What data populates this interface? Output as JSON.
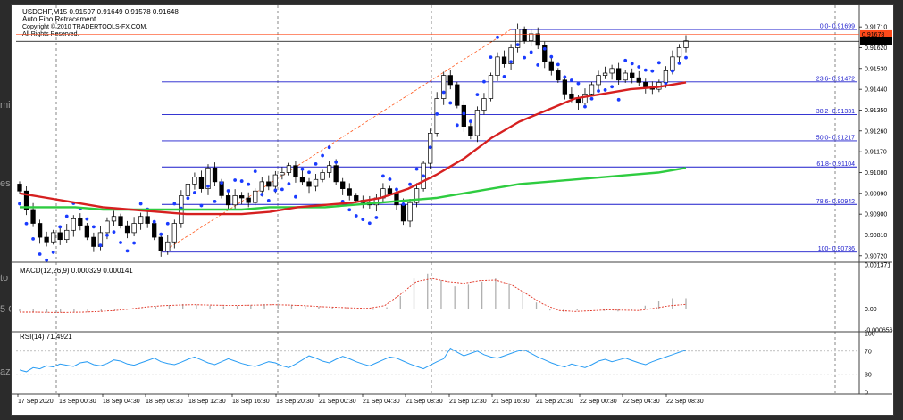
{
  "window": {
    "symbol_line": "USDCHF,M15  0.91597 0.91649 0.91578 0.91648",
    "indicator_name": "Auto Fibo Retracement",
    "copyright": "Copyright © 2010 TRADERTOOLS-FX.COM.",
    "rights": "All Rights Reserved."
  },
  "side_text": [
    "mi",
    "es",
    "to",
    "5 G",
    "aze"
  ],
  "colors": {
    "candle": "#000000",
    "sar": "#1a3bff",
    "ma_red": "#d62020",
    "ma_green": "#2ecc40",
    "fibo": "#1a1acc",
    "diagonal": "#ff5a1f",
    "macd_hist": "#b0b0b0",
    "macd_signal": "#e03020",
    "rsi": "#2a9df4",
    "price_marker": "#ff4a1a"
  },
  "chart_data": [
    {
      "type": "candlestick",
      "title": "USDCHF,M15",
      "ylim": [
        0.907,
        0.9178
      ],
      "y_ticks": [
        "0.91710",
        "0.91620",
        "0.91530",
        "0.91440",
        "0.91350",
        "0.91260",
        "0.91170",
        "0.91080",
        "0.90990",
        "0.90900",
        "0.90810",
        "0.90720"
      ],
      "x_ticks": [
        "17 Sep 2020",
        "18 Sep 00:30",
        "18 Sep 04:30",
        "18 Sep 08:30",
        "18 Sep 12:30",
        "18 Sep 16:30",
        "18 Sep 20:30",
        "21 Sep 00:30",
        "21 Sep 04:30",
        "21 Sep 08:30",
        "21 Sep 12:30",
        "21 Sep 16:30",
        "21 Sep 20:30",
        "22 Sep 00:30",
        "22 Sep 04:30",
        "22 Sep 08:30"
      ],
      "current_prices": [
        {
          "value": 0.91678,
          "label": "0.91678",
          "color": "#ff4a1a"
        },
        {
          "value": 0.91648,
          "label": "0.91648",
          "color": "#000000"
        }
      ],
      "fibo_levels": [
        {
          "label": "0.0- 0.91699",
          "price": 0.91699
        },
        {
          "label": "23.6- 0.91472",
          "price": 0.91472
        },
        {
          "label": "38.2- 0.91331",
          "price": 0.91331
        },
        {
          "label": "50.0- 0.91217",
          "price": 0.91217
        },
        {
          "label": "61.8- 0.91104",
          "price": 0.91104
        },
        {
          "label": "78.6- 0.90942",
          "price": 0.90942
        },
        {
          "label": "100- 0.90736",
          "price": 0.90736
        }
      ],
      "close_path": [
        0.91,
        0.9092,
        0.9086,
        0.908,
        0.9078,
        0.9082,
        0.9079,
        0.9083,
        0.9088,
        0.9085,
        0.908,
        0.9076,
        0.9082,
        0.9087,
        0.9089,
        0.9085,
        0.9082,
        0.9086,
        0.9089,
        0.9086,
        0.908,
        0.9074,
        0.9078,
        0.9086,
        0.9098,
        0.9103,
        0.9106,
        0.9101,
        0.911,
        0.9104,
        0.9098,
        0.9094,
        0.9098,
        0.9097,
        0.9095,
        0.91,
        0.9104,
        0.9102,
        0.9107,
        0.9108,
        0.9111,
        0.9106,
        0.9104,
        0.9102,
        0.9105,
        0.9108,
        0.9111,
        0.9104,
        0.9101,
        0.9098,
        0.9096,
        0.9095,
        0.9094,
        0.9097,
        0.9101,
        0.9099,
        0.9094,
        0.9087,
        0.9095,
        0.9101,
        0.9112,
        0.9125,
        0.914,
        0.915,
        0.9146,
        0.9137,
        0.9128,
        0.9124,
        0.9135,
        0.914,
        0.915,
        0.9158,
        0.9155,
        0.9162,
        0.917,
        0.9165,
        0.9168,
        0.9163,
        0.9156,
        0.9152,
        0.9148,
        0.9142,
        0.914,
        0.9138,
        0.9142,
        0.9146,
        0.915,
        0.9151,
        0.9153,
        0.9148,
        0.9151,
        0.9149,
        0.9147,
        0.9145,
        0.9144,
        0.9147,
        0.9152,
        0.9158,
        0.9162,
        0.9165
      ],
      "ma_red": [
        0.9099,
        0.9097,
        0.9095,
        0.9093,
        0.9092,
        0.9091,
        0.909,
        0.909,
        0.909,
        0.9091,
        0.9093,
        0.9094,
        0.9095,
        0.9097,
        0.9101,
        0.9107,
        0.9114,
        0.9123,
        0.913,
        0.9135,
        0.914,
        0.9142,
        0.9144,
        0.9145,
        0.9147
      ],
      "ma_green": [
        0.9093,
        0.9093,
        0.9093,
        0.9092,
        0.9092,
        0.9092,
        0.9092,
        0.9092,
        0.9092,
        0.9093,
        0.9093,
        0.9093,
        0.9094,
        0.9095,
        0.9096,
        0.9097,
        0.9099,
        0.9101,
        0.9103,
        0.9104,
        0.9105,
        0.9106,
        0.9107,
        0.9108,
        0.911
      ]
    },
    {
      "type": "bar",
      "title": "MACD(12,26,9) 0.000329 0.000141",
      "ylim": [
        -0.000656,
        0.001371
      ],
      "y_ticks": [
        "0.001371",
        "0.00",
        "-0.000656"
      ],
      "hist": [
        -8e-05,
        -0.0001,
        -0.00012,
        -0.00011,
        -0.0001,
        -9e-05,
        -8e-05,
        -5e-05,
        -2e-05,
        2e-05,
        8e-05,
        0.00012,
        0.00015,
        0.00014,
        0.0001,
        8e-05,
        9e-05,
        0.00012,
        0.00015,
        0.00016,
        0.00013,
        0.0001,
        7e-05,
        4e-05,
        2e-05,
        0.0,
        -3e-05,
        5e-05,
        0.0004,
        0.00095,
        0.0011,
        0.0009,
        0.0007,
        0.00075,
        0.00085,
        0.00095,
        0.0008,
        0.0005,
        0.0002,
        -5e-05,
        -0.0001,
        -5e-05,
        0.0,
        -6e-05,
        -8e-05,
        -4e-05,
        0.0001,
        0.00025,
        0.00033,
        0.00033
      ],
      "signal": [
        -0.0001,
        -0.0001,
        -0.00011,
        -0.00011,
        -0.0001,
        -8e-05,
        -5e-05,
        0.0,
        6e-05,
        0.0001,
        0.00012,
        0.00013,
        0.00012,
        0.00011,
        0.00011,
        0.00012,
        0.00013,
        0.00012,
        0.0001,
        7e-05,
        5e-05,
        3e-05,
        2e-05,
        0.0001,
        0.00045,
        0.00085,
        0.00095,
        0.00085,
        0.0008,
        0.00088,
        0.0009,
        0.00075,
        0.00045,
        0.00015,
        -5e-05,
        -8e-05,
        -6e-05,
        -3e-05,
        -4e-05,
        -5e-05,
        2e-05,
        0.0001,
        0.00014
      ]
    },
    {
      "type": "line",
      "title": "RSI(14) 71.4921",
      "ylim": [
        0,
        100
      ],
      "y_ticks": [
        "100",
        "70",
        "30",
        "0"
      ],
      "values": [
        38,
        35,
        42,
        40,
        45,
        43,
        48,
        46,
        44,
        50,
        52,
        47,
        45,
        49,
        55,
        53,
        48,
        46,
        50,
        54,
        58,
        52,
        49,
        47,
        51,
        56,
        60,
        55,
        50,
        47,
        52,
        57,
        53,
        49,
        46,
        44,
        48,
        52,
        50,
        45,
        42,
        48,
        55,
        62,
        58,
        53,
        50,
        56,
        61,
        57,
        52,
        48,
        45,
        50,
        55,
        60,
        58,
        53,
        48,
        44,
        40,
        46,
        52,
        57,
        75,
        68,
        62,
        66,
        70,
        64,
        60,
        58,
        62,
        66,
        70,
        72,
        66,
        60,
        55,
        50,
        46,
        43,
        48,
        45,
        42,
        47,
        53,
        56,
        52,
        55,
        58,
        54,
        50,
        47,
        52,
        56,
        60,
        64,
        68,
        71.5
      ]
    }
  ]
}
